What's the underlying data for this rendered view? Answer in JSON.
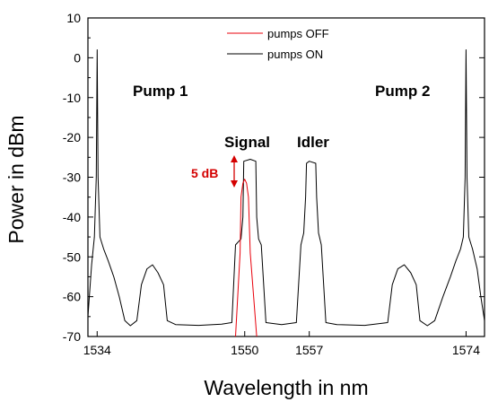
{
  "chart_data": {
    "type": "line",
    "title": "",
    "xlabel": "Wavelength in nm",
    "ylabel": "Power in dBm",
    "xlim": [
      1533,
      1576
    ],
    "ylim": [
      -70,
      10
    ],
    "x_ticks": [
      1534,
      1550,
      1557,
      1574
    ],
    "y_ticks": [
      10,
      0,
      -10,
      -20,
      -30,
      -40,
      -50,
      -60,
      -70
    ],
    "legend_position": "top-center",
    "grid": false,
    "colors": {
      "pumps_off": "#e8000b",
      "pumps_on": "#000000",
      "gain_arrow": "#d40000"
    },
    "series": [
      {
        "name": "pumps OFF",
        "key": "pumps_off",
        "segments": [
          [
            [
              1549.0,
              -70
            ],
            [
              1549.5,
              -49
            ],
            [
              1549.6,
              -35
            ],
            [
              1549.8,
              -31.5
            ],
            [
              1550.0,
              -30.5
            ],
            [
              1550.2,
              -31.5
            ],
            [
              1550.4,
              -35
            ],
            [
              1550.6,
              -49
            ],
            [
              1551.3,
              -70
            ]
          ]
        ]
      },
      {
        "name": "pumps ON",
        "key": "pumps_on",
        "segments": [
          [
            [
              1533.0,
              -65
            ],
            [
              1533.4,
              -52
            ],
            [
              1533.7,
              -45
            ],
            [
              1533.9,
              -30
            ],
            [
              1534.0,
              2
            ],
            [
              1534.1,
              -30
            ],
            [
              1534.3,
              -45
            ],
            [
              1534.7,
              -48
            ],
            [
              1535.2,
              -51
            ],
            [
              1535.8,
              -55
            ],
            [
              1536.4,
              -60
            ],
            [
              1537.0,
              -66
            ],
            [
              1537.6,
              -67.3
            ],
            [
              1538.3,
              -66
            ],
            [
              1538.8,
              -57
            ],
            [
              1539.4,
              -53
            ],
            [
              1540.0,
              -52
            ],
            [
              1540.6,
              -54
            ],
            [
              1541.2,
              -57
            ],
            [
              1541.6,
              -66
            ],
            [
              1542.5,
              -67
            ],
            [
              1545.0,
              -67.2
            ],
            [
              1547.5,
              -66.9
            ],
            [
              1548.6,
              -66.5
            ],
            [
              1549.0,
              -47
            ],
            [
              1549.6,
              -45.5
            ],
            [
              1549.8,
              -40
            ],
            [
              1549.9,
              -26
            ],
            [
              1550.6,
              -25.5
            ],
            [
              1551.2,
              -26
            ],
            [
              1551.3,
              -40
            ],
            [
              1551.5,
              -45.5
            ],
            [
              1551.8,
              -47
            ],
            [
              1552.3,
              -66.5
            ],
            [
              1554.0,
              -67
            ],
            [
              1555.6,
              -66.5
            ],
            [
              1556.1,
              -47
            ],
            [
              1556.4,
              -44
            ],
            [
              1556.6,
              -35
            ],
            [
              1556.7,
              -26.5
            ],
            [
              1557.0,
              -26
            ],
            [
              1557.7,
              -26.5
            ],
            [
              1557.8,
              -35
            ],
            [
              1558.0,
              -44
            ],
            [
              1558.3,
              -47
            ],
            [
              1558.8,
              -66.5
            ],
            [
              1560.0,
              -67
            ],
            [
              1563.0,
              -67.2
            ],
            [
              1565.5,
              -66.5
            ],
            [
              1566.0,
              -57
            ],
            [
              1566.6,
              -53
            ],
            [
              1567.3,
              -52
            ],
            [
              1568.0,
              -54
            ],
            [
              1568.6,
              -57
            ],
            [
              1569.0,
              -66
            ],
            [
              1569.8,
              -67.3
            ],
            [
              1570.6,
              -66
            ],
            [
              1571.5,
              -60
            ],
            [
              1572.3,
              -55
            ],
            [
              1572.9,
              -51
            ],
            [
              1573.4,
              -48
            ],
            [
              1573.7,
              -45
            ],
            [
              1573.9,
              -30
            ],
            [
              1574.0,
              2
            ],
            [
              1574.1,
              -30
            ],
            [
              1574.3,
              -45
            ],
            [
              1574.7,
              -48
            ],
            [
              1575.2,
              -53
            ],
            [
              1575.6,
              -60
            ],
            [
              1576.0,
              -66
            ]
          ]
        ]
      }
    ],
    "annotations": {
      "pump1": "Pump 1",
      "pump2": "Pump 2",
      "signal": "Signal",
      "idler": "Idler",
      "gain": "5 dB"
    }
  }
}
